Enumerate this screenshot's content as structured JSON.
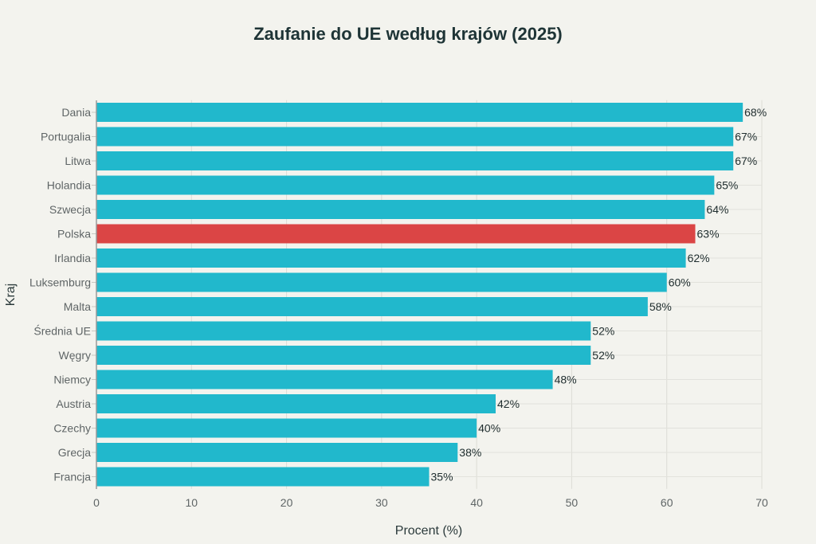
{
  "chart_data": {
    "type": "bar",
    "orientation": "horizontal",
    "title": "Zaufanie do UE według krajów (2025)",
    "xlabel": "Procent (%)",
    "ylabel": "Kraj",
    "xlim": [
      0,
      70
    ],
    "xticks": [
      0,
      10,
      20,
      30,
      40,
      50,
      60,
      70
    ],
    "grid": true,
    "categories": [
      "Dania",
      "Portugalia",
      "Litwa",
      "Holandia",
      "Szwecja",
      "Polska",
      "Irlandia",
      "Luksemburg",
      "Malta",
      "Średnia UE",
      "Węgry",
      "Niemcy",
      "Austria",
      "Czechy",
      "Grecja",
      "Francja"
    ],
    "values": [
      68,
      67,
      67,
      65,
      64,
      63,
      62,
      60,
      58,
      52,
      52,
      48,
      42,
      40,
      38,
      35
    ],
    "data_labels": [
      "68%",
      "67%",
      "67%",
      "65%",
      "64%",
      "63%",
      "62%",
      "60%",
      "58%",
      "52%",
      "52%",
      "48%",
      "42%",
      "40%",
      "38%",
      "35%"
    ],
    "highlight": "Polska",
    "colors": {
      "default": "#21B8CC",
      "highlight": "#DB4545"
    }
  }
}
